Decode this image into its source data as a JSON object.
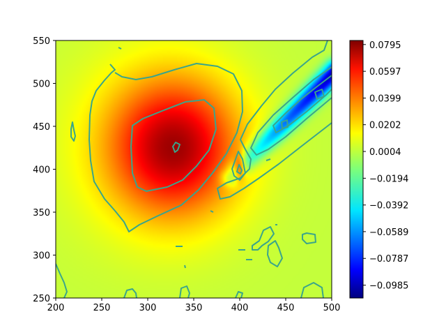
{
  "chart_data": {
    "type": "heatmap",
    "title": "",
    "xlabel": "",
    "ylabel": "",
    "xlim": [
      200,
      500
    ],
    "ylim": [
      250,
      550
    ],
    "x_ticks": [
      "200",
      "250",
      "300",
      "350",
      "400",
      "450",
      "500"
    ],
    "y_ticks": [
      "250",
      "300",
      "350",
      "400",
      "450",
      "500",
      "550"
    ],
    "colormap": "jet",
    "color_range": [
      -0.108,
      0.0825
    ],
    "colorbar_ticks": [
      "0.0795",
      "0.0597",
      "0.0399",
      "0.0202",
      "0.0004",
      "−0.0194",
      "−0.0392",
      "−0.0589",
      "−0.0787",
      "−0.0985"
    ],
    "features": [
      {
        "kind": "maximum",
        "center": [
          330,
          425
        ],
        "peak": 0.066
      },
      {
        "kind": "minimum",
        "center": [
          480,
          484
        ],
        "peak": -0.095
      },
      {
        "kind": "local-maximum",
        "center": [
          400,
          402
        ],
        "peak": 0.045
      }
    ],
    "contour_color": "#3aa58b"
  }
}
